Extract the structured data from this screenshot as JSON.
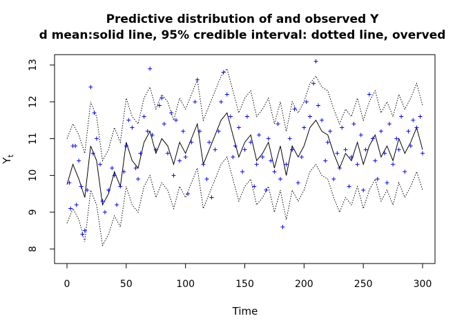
{
  "chart_data": {
    "type": "line",
    "title": "Predictive distribution of and observed Y",
    "subtitle": "d mean:solid line, 95% credible interval: dotted line, overved",
    "xlabel": "Time",
    "ylabel": "Y",
    "ylabel_subscript": "t",
    "xlim": [
      0,
      300
    ],
    "ylim": [
      7.6,
      13.2
    ],
    "x_ticks": [
      "0",
      "50",
      "100",
      "150",
      "200",
      "250",
      "300"
    ],
    "y_ticks": [
      "8",
      "9",
      "10",
      "11",
      "12",
      "13"
    ],
    "mean_points": [
      [
        0,
        9.75
      ],
      [
        5,
        10.3
      ],
      [
        10,
        9.9
      ],
      [
        15,
        9.4
      ],
      [
        20,
        10.8
      ],
      [
        25,
        10.4
      ],
      [
        30,
        9.2
      ],
      [
        35,
        9.5
      ],
      [
        40,
        10.1
      ],
      [
        45,
        9.7
      ],
      [
        50,
        10.9
      ],
      [
        55,
        10.4
      ],
      [
        60,
        10.2
      ],
      [
        65,
        10.9
      ],
      [
        70,
        11.2
      ],
      [
        75,
        10.6
      ],
      [
        80,
        11.0
      ],
      [
        85,
        10.8
      ],
      [
        90,
        10.3
      ],
      [
        95,
        10.9
      ],
      [
        100,
        10.6
      ],
      [
        105,
        11.0
      ],
      [
        110,
        11.4
      ],
      [
        115,
        10.3
      ],
      [
        120,
        10.7
      ],
      [
        125,
        11.1
      ],
      [
        130,
        11.5
      ],
      [
        135,
        11.7
      ],
      [
        140,
        11.1
      ],
      [
        145,
        10.5
      ],
      [
        150,
        10.9
      ],
      [
        155,
        11.1
      ],
      [
        160,
        10.4
      ],
      [
        165,
        10.6
      ],
      [
        170,
        10.9
      ],
      [
        175,
        10.2
      ],
      [
        180,
        10.8
      ],
      [
        185,
        10.0
      ],
      [
        190,
        10.8
      ],
      [
        195,
        10.5
      ],
      [
        200,
        10.8
      ],
      [
        205,
        11.3
      ],
      [
        210,
        11.5
      ],
      [
        215,
        11.2
      ],
      [
        220,
        11.1
      ],
      [
        225,
        10.6
      ],
      [
        230,
        10.2
      ],
      [
        235,
        10.6
      ],
      [
        240,
        10.4
      ],
      [
        245,
        10.9
      ],
      [
        250,
        10.3
      ],
      [
        255,
        10.8
      ],
      [
        260,
        11.1
      ],
      [
        265,
        10.5
      ],
      [
        270,
        10.8
      ],
      [
        275,
        10.4
      ],
      [
        280,
        11.0
      ],
      [
        285,
        10.6
      ],
      [
        290,
        10.9
      ],
      [
        295,
        11.3
      ],
      [
        300,
        10.7
      ]
    ],
    "upper_points": [
      [
        0,
        11.0
      ],
      [
        5,
        11.4
      ],
      [
        10,
        11.1
      ],
      [
        15,
        10.6
      ],
      [
        20,
        12.0
      ],
      [
        25,
        11.6
      ],
      [
        30,
        10.4
      ],
      [
        35,
        10.7
      ],
      [
        40,
        11.3
      ],
      [
        45,
        10.9
      ],
      [
        50,
        12.1
      ],
      [
        55,
        11.6
      ],
      [
        60,
        11.4
      ],
      [
        65,
        12.1
      ],
      [
        70,
        12.4
      ],
      [
        75,
        11.8
      ],
      [
        80,
        12.2
      ],
      [
        85,
        12.0
      ],
      [
        90,
        11.5
      ],
      [
        95,
        12.1
      ],
      [
        100,
        11.8
      ],
      [
        105,
        12.2
      ],
      [
        110,
        12.6
      ],
      [
        115,
        11.5
      ],
      [
        120,
        11.9
      ],
      [
        125,
        12.3
      ],
      [
        130,
        12.7
      ],
      [
        135,
        12.9
      ],
      [
        140,
        12.3
      ],
      [
        145,
        11.7
      ],
      [
        150,
        12.1
      ],
      [
        155,
        12.3
      ],
      [
        160,
        11.6
      ],
      [
        165,
        11.8
      ],
      [
        170,
        12.1
      ],
      [
        175,
        11.4
      ],
      [
        180,
        12.0
      ],
      [
        185,
        11.2
      ],
      [
        190,
        12.0
      ],
      [
        195,
        11.7
      ],
      [
        200,
        12.0
      ],
      [
        205,
        12.5
      ],
      [
        210,
        12.7
      ],
      [
        215,
        12.4
      ],
      [
        220,
        12.3
      ],
      [
        225,
        11.8
      ],
      [
        230,
        11.4
      ],
      [
        235,
        11.8
      ],
      [
        240,
        11.6
      ],
      [
        245,
        12.1
      ],
      [
        250,
        11.5
      ],
      [
        255,
        12.0
      ],
      [
        260,
        12.3
      ],
      [
        265,
        11.7
      ],
      [
        270,
        12.0
      ],
      [
        275,
        11.6
      ],
      [
        280,
        12.2
      ],
      [
        285,
        11.8
      ],
      [
        290,
        12.1
      ],
      [
        295,
        12.5
      ],
      [
        300,
        11.9
      ]
    ],
    "lower_points": [
      [
        0,
        8.7
      ],
      [
        5,
        9.1
      ],
      [
        10,
        8.8
      ],
      [
        15,
        8.2
      ],
      [
        20,
        9.6
      ],
      [
        25,
        9.2
      ],
      [
        30,
        8.1
      ],
      [
        35,
        8.4
      ],
      [
        40,
        8.9
      ],
      [
        45,
        8.6
      ],
      [
        50,
        9.7
      ],
      [
        55,
        9.2
      ],
      [
        60,
        9.0
      ],
      [
        65,
        9.7
      ],
      [
        70,
        10.0
      ],
      [
        75,
        9.4
      ],
      [
        80,
        9.8
      ],
      [
        85,
        9.6
      ],
      [
        90,
        9.1
      ],
      [
        95,
        9.7
      ],
      [
        100,
        9.4
      ],
      [
        105,
        9.8
      ],
      [
        110,
        10.2
      ],
      [
        115,
        9.1
      ],
      [
        120,
        9.5
      ],
      [
        125,
        9.9
      ],
      [
        130,
        10.3
      ],
      [
        135,
        10.5
      ],
      [
        140,
        9.9
      ],
      [
        145,
        9.3
      ],
      [
        150,
        9.7
      ],
      [
        155,
        9.9
      ],
      [
        160,
        9.2
      ],
      [
        165,
        9.4
      ],
      [
        170,
        9.7
      ],
      [
        175,
        9.0
      ],
      [
        180,
        9.6
      ],
      [
        185,
        8.8
      ],
      [
        190,
        9.6
      ],
      [
        195,
        9.3
      ],
      [
        200,
        9.6
      ],
      [
        205,
        10.1
      ],
      [
        210,
        10.3
      ],
      [
        215,
        10.0
      ],
      [
        220,
        9.9
      ],
      [
        225,
        9.4
      ],
      [
        230,
        9.0
      ],
      [
        235,
        9.4
      ],
      [
        240,
        9.2
      ],
      [
        245,
        9.7
      ],
      [
        250,
        9.1
      ],
      [
        255,
        9.6
      ],
      [
        260,
        9.9
      ],
      [
        265,
        9.3
      ],
      [
        270,
        9.6
      ],
      [
        275,
        9.2
      ],
      [
        280,
        9.8
      ],
      [
        285,
        9.4
      ],
      [
        290,
        9.7
      ],
      [
        295,
        10.1
      ],
      [
        300,
        9.6
      ]
    ],
    "observed_points": [
      [
        2,
        9.8
      ],
      [
        3,
        9.1
      ],
      [
        5,
        10.8
      ],
      [
        7,
        10.8
      ],
      [
        8,
        9.2
      ],
      [
        10,
        10.4
      ],
      [
        12,
        9.7
      ],
      [
        13,
        8.4
      ],
      [
        15,
        8.5
      ],
      [
        17,
        9.6
      ],
      [
        20,
        12.4
      ],
      [
        22,
        10.6
      ],
      [
        23,
        11.7
      ],
      [
        25,
        11.0
      ],
      [
        28,
        10.3
      ],
      [
        30,
        9.3
      ],
      [
        32,
        9.0
      ],
      [
        35,
        9.6
      ],
      [
        38,
        10.2
      ],
      [
        40,
        10.0
      ],
      [
        42,
        9.2
      ],
      [
        45,
        9.7
      ],
      [
        48,
        10.1
      ],
      [
        50,
        10.8
      ],
      [
        52,
        11.5
      ],
      [
        55,
        11.3
      ],
      [
        58,
        10.2
      ],
      [
        60,
        9.9
      ],
      [
        62,
        10.6
      ],
      [
        65,
        11.6
      ],
      [
        68,
        11.2
      ],
      [
        70,
        12.9
      ],
      [
        72,
        11.1
      ],
      [
        75,
        10.7
      ],
      [
        78,
        11.9
      ],
      [
        80,
        12.1
      ],
      [
        82,
        11.4
      ],
      [
        85,
        10.6
      ],
      [
        88,
        11.7
      ],
      [
        90,
        10.0
      ],
      [
        92,
        11.5
      ],
      [
        95,
        10.4
      ],
      [
        98,
        11.2
      ],
      [
        100,
        10.5
      ],
      [
        102,
        9.5
      ],
      [
        105,
        10.9
      ],
      [
        108,
        12.0
      ],
      [
        110,
        12.6
      ],
      [
        112,
        11.2
      ],
      [
        115,
        10.3
      ],
      [
        118,
        9.9
      ],
      [
        120,
        10.9
      ],
      [
        122,
        9.4
      ],
      [
        125,
        10.7
      ],
      [
        128,
        11.2
      ],
      [
        130,
        12.0
      ],
      [
        132,
        12.8
      ],
      [
        135,
        12.2
      ],
      [
        138,
        11.6
      ],
      [
        140,
        10.5
      ],
      [
        142,
        10.8
      ],
      [
        145,
        11.3
      ],
      [
        148,
        10.1
      ],
      [
        150,
        10.7
      ],
      [
        152,
        11.6
      ],
      [
        155,
        10.9
      ],
      [
        158,
        9.7
      ],
      [
        160,
        10.3
      ],
      [
        162,
        11.1
      ],
      [
        165,
        10.5
      ],
      [
        168,
        9.6
      ],
      [
        170,
        11.0
      ],
      [
        172,
        10.4
      ],
      [
        175,
        10.1
      ],
      [
        178,
        11.4
      ],
      [
        180,
        9.9
      ],
      [
        182,
        8.6
      ],
      [
        185,
        10.3
      ],
      [
        188,
        11.0
      ],
      [
        190,
        10.7
      ],
      [
        192,
        11.8
      ],
      [
        195,
        9.8
      ],
      [
        198,
        10.5
      ],
      [
        200,
        11.3
      ],
      [
        202,
        12.0
      ],
      [
        205,
        11.6
      ],
      [
        208,
        12.5
      ],
      [
        210,
        13.1
      ],
      [
        212,
        11.9
      ],
      [
        215,
        11.5
      ],
      [
        218,
        10.4
      ],
      [
        220,
        10.9
      ],
      [
        222,
        11.2
      ],
      [
        225,
        9.9
      ],
      [
        228,
        10.6
      ],
      [
        230,
        10.2
      ],
      [
        232,
        11.3
      ],
      [
        235,
        10.7
      ],
      [
        238,
        9.7
      ],
      [
        240,
        10.5
      ],
      [
        242,
        11.4
      ],
      [
        245,
        10.3
      ],
      [
        248,
        11.1
      ],
      [
        250,
        9.6
      ],
      [
        252,
        10.7
      ],
      [
        255,
        12.2
      ],
      [
        258,
        11.0
      ],
      [
        260,
        10.4
      ],
      [
        262,
        9.9
      ],
      [
        265,
        11.2
      ],
      [
        268,
        10.6
      ],
      [
        270,
        9.8
      ],
      [
        272,
        11.4
      ],
      [
        275,
        10.3
      ],
      [
        278,
        11.0
      ],
      [
        280,
        10.7
      ],
      [
        282,
        11.6
      ],
      [
        285,
        10.1
      ],
      [
        288,
        11.2
      ],
      [
        290,
        10.8
      ],
      [
        292,
        11.5
      ],
      [
        295,
        11.3
      ],
      [
        298,
        11.6
      ],
      [
        300,
        10.6
      ]
    ]
  }
}
